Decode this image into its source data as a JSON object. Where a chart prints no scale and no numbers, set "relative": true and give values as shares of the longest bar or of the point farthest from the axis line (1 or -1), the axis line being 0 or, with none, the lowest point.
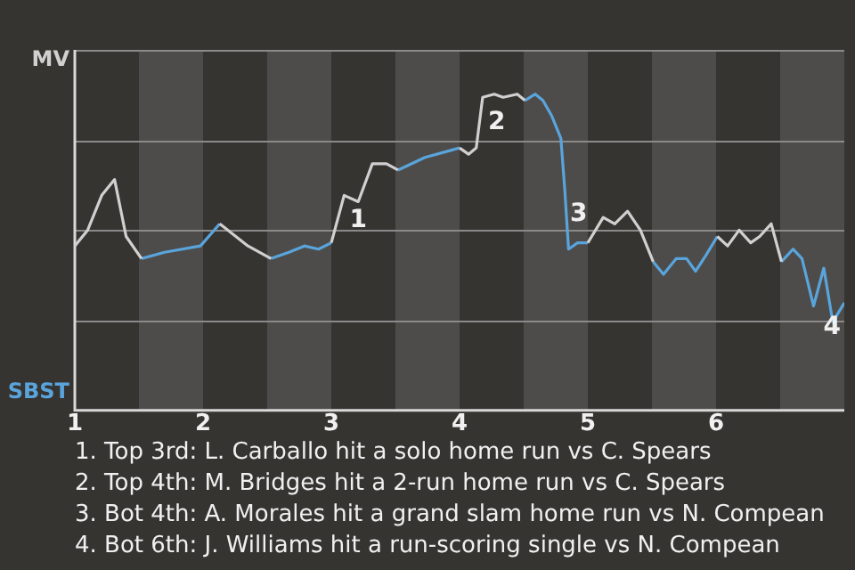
{
  "chart_data": {
    "type": "line",
    "legend": false,
    "grid": "y",
    "marker": "none",
    "line_style": "solid",
    "relative": true,
    "xlim": [
      1,
      7
    ],
    "xticks": [
      1,
      2,
      3,
      4,
      5,
      6
    ],
    "bands": [
      {
        "axis": "x",
        "from": 1.5,
        "to": 2,
        "color": "#4d4c4a"
      },
      {
        "axis": "x",
        "from": 2.5,
        "to": 3,
        "color": "#4d4c4a"
      },
      {
        "axis": "x",
        "from": 3.5,
        "to": 4,
        "color": "#4d4c4a"
      },
      {
        "axis": "x",
        "from": 4.5,
        "to": 5,
        "color": "#4d4c4a"
      },
      {
        "axis": "x",
        "from": 5.5,
        "to": 6,
        "color": "#4d4c4a"
      },
      {
        "axis": "x",
        "from": 6.5,
        "to": 7,
        "color": "#4d4c4a"
      }
    ],
    "x": [
      1.0,
      1.1,
      1.21,
      1.31,
      1.4,
      1.52,
      1.7,
      1.98,
      2.13,
      2.35,
      2.53,
      2.67,
      2.79,
      2.9,
      3.0,
      3.1,
      3.21,
      3.32,
      3.43,
      3.52,
      3.73,
      4.0,
      4.07,
      4.13,
      4.18,
      4.27,
      4.34,
      4.45,
      4.51,
      4.59,
      4.65,
      4.72,
      4.79,
      4.82,
      4.85,
      4.92,
      5.0,
      5.12,
      5.21,
      5.31,
      5.41,
      5.51,
      5.59,
      5.69,
      5.77,
      5.84,
      5.92,
      6.01,
      6.09,
      6.18,
      6.27,
      6.34,
      6.43,
      6.51,
      6.6,
      6.67,
      6.76,
      6.84,
      6.91,
      7.0
    ],
    "series": [
      {
        "color": "#d0d0d0",
        "values": [
          0.52,
          0.57,
          0.68,
          0.73,
          0.55,
          0.48,
          null,
          null,
          0.59,
          0.52,
          0.48,
          null,
          null,
          null,
          0.53,
          0.68,
          0.66,
          0.78,
          0.78,
          0.76,
          null,
          0.83,
          0.81,
          0.83,
          0.99,
          1,
          0.99,
          1,
          0.98,
          null,
          null,
          null,
          null,
          null,
          null,
          null,
          0.53,
          0.61,
          0.59,
          0.63,
          0.57,
          0.47,
          null,
          null,
          null,
          null,
          null,
          0.55,
          0.52,
          0.57,
          0.53,
          0.55,
          0.59,
          0.47,
          null,
          null,
          null,
          null,
          null,
          null
        ]
      },
      {
        "color": "#5aa4dc",
        "values": [
          null,
          null,
          null,
          null,
          null,
          0.48,
          0.5,
          0.52,
          0.59,
          null,
          0.48,
          0.5,
          0.52,
          0.51,
          0.53,
          null,
          null,
          null,
          null,
          0.76,
          0.8,
          0.83,
          null,
          null,
          null,
          null,
          null,
          null,
          0.98,
          1,
          0.98,
          0.93,
          0.86,
          0.7,
          0.51,
          0.53,
          0.53,
          null,
          null,
          null,
          null,
          0.47,
          0.43,
          0.48,
          0.48,
          0.44,
          0.49,
          0.55,
          null,
          null,
          null,
          null,
          null,
          0.47,
          0.51,
          0.48,
          0.33,
          0.45,
          0.28,
          0.34
        ]
      }
    ],
    "annotations": [
      "MV",
      "SBST",
      {
        "text": "1",
        "x": 3.1,
        "y": 0.68
      },
      {
        "text": "2",
        "x": 4.18,
        "y": 0.99
      },
      {
        "text": "3",
        "x": 4.82,
        "y": 0.7
      },
      {
        "text": "4",
        "x": 7.0,
        "y": 0.34
      },
      "1. Top 3rd: L. Carballo hit a solo home run vs C. Spears",
      "2. Top 4th: M. Bridges hit a 2-run home run vs C. Spears",
      "3. Bot 4th: A. Morales hit a grand slam home run vs N. Compean",
      "4. Bot 6th: J. Williams hit a run-scoring single vs N. Compean"
    ]
  }
}
